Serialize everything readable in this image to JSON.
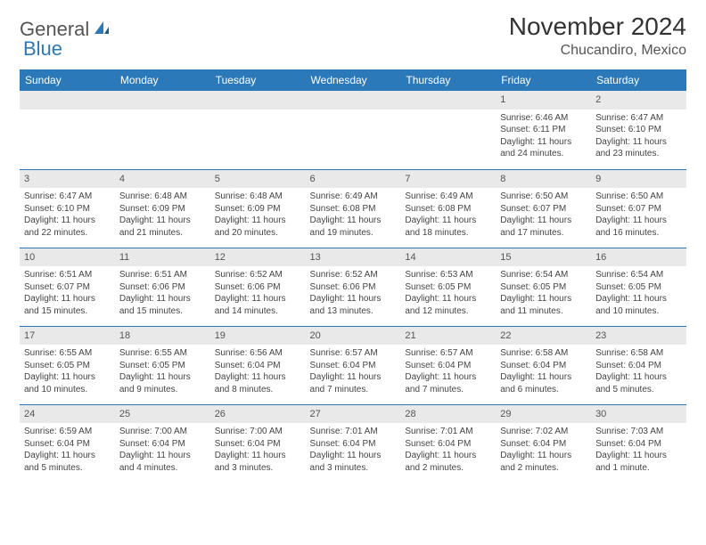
{
  "brand": {
    "part1": "General",
    "part2": "Blue"
  },
  "title": "November 2024",
  "subtitle": "Chucandiro, Mexico",
  "colors": {
    "header_bg": "#2b79b9",
    "header_fg": "#ffffff",
    "daynum_bg": "#e9e9e9",
    "cell_border": "#2b79b9",
    "text": "#444444"
  },
  "typography": {
    "title_fontsize": 28,
    "subtitle_fontsize": 16,
    "header_fontsize": 12,
    "cell_fontsize": 10
  },
  "day_headers": [
    "Sunday",
    "Monday",
    "Tuesday",
    "Wednesday",
    "Thursday",
    "Friday",
    "Saturday"
  ],
  "weeks": [
    [
      null,
      null,
      null,
      null,
      null,
      {
        "n": "1",
        "sunrise": "Sunrise: 6:46 AM",
        "sunset": "Sunset: 6:11 PM",
        "daylight": "Daylight: 11 hours and 24 minutes."
      },
      {
        "n": "2",
        "sunrise": "Sunrise: 6:47 AM",
        "sunset": "Sunset: 6:10 PM",
        "daylight": "Daylight: 11 hours and 23 minutes."
      }
    ],
    [
      {
        "n": "3",
        "sunrise": "Sunrise: 6:47 AM",
        "sunset": "Sunset: 6:10 PM",
        "daylight": "Daylight: 11 hours and 22 minutes."
      },
      {
        "n": "4",
        "sunrise": "Sunrise: 6:48 AM",
        "sunset": "Sunset: 6:09 PM",
        "daylight": "Daylight: 11 hours and 21 minutes."
      },
      {
        "n": "5",
        "sunrise": "Sunrise: 6:48 AM",
        "sunset": "Sunset: 6:09 PM",
        "daylight": "Daylight: 11 hours and 20 minutes."
      },
      {
        "n": "6",
        "sunrise": "Sunrise: 6:49 AM",
        "sunset": "Sunset: 6:08 PM",
        "daylight": "Daylight: 11 hours and 19 minutes."
      },
      {
        "n": "7",
        "sunrise": "Sunrise: 6:49 AM",
        "sunset": "Sunset: 6:08 PM",
        "daylight": "Daylight: 11 hours and 18 minutes."
      },
      {
        "n": "8",
        "sunrise": "Sunrise: 6:50 AM",
        "sunset": "Sunset: 6:07 PM",
        "daylight": "Daylight: 11 hours and 17 minutes."
      },
      {
        "n": "9",
        "sunrise": "Sunrise: 6:50 AM",
        "sunset": "Sunset: 6:07 PM",
        "daylight": "Daylight: 11 hours and 16 minutes."
      }
    ],
    [
      {
        "n": "10",
        "sunrise": "Sunrise: 6:51 AM",
        "sunset": "Sunset: 6:07 PM",
        "daylight": "Daylight: 11 hours and 15 minutes."
      },
      {
        "n": "11",
        "sunrise": "Sunrise: 6:51 AM",
        "sunset": "Sunset: 6:06 PM",
        "daylight": "Daylight: 11 hours and 15 minutes."
      },
      {
        "n": "12",
        "sunrise": "Sunrise: 6:52 AM",
        "sunset": "Sunset: 6:06 PM",
        "daylight": "Daylight: 11 hours and 14 minutes."
      },
      {
        "n": "13",
        "sunrise": "Sunrise: 6:52 AM",
        "sunset": "Sunset: 6:06 PM",
        "daylight": "Daylight: 11 hours and 13 minutes."
      },
      {
        "n": "14",
        "sunrise": "Sunrise: 6:53 AM",
        "sunset": "Sunset: 6:05 PM",
        "daylight": "Daylight: 11 hours and 12 minutes."
      },
      {
        "n": "15",
        "sunrise": "Sunrise: 6:54 AM",
        "sunset": "Sunset: 6:05 PM",
        "daylight": "Daylight: 11 hours and 11 minutes."
      },
      {
        "n": "16",
        "sunrise": "Sunrise: 6:54 AM",
        "sunset": "Sunset: 6:05 PM",
        "daylight": "Daylight: 11 hours and 10 minutes."
      }
    ],
    [
      {
        "n": "17",
        "sunrise": "Sunrise: 6:55 AM",
        "sunset": "Sunset: 6:05 PM",
        "daylight": "Daylight: 11 hours and 10 minutes."
      },
      {
        "n": "18",
        "sunrise": "Sunrise: 6:55 AM",
        "sunset": "Sunset: 6:05 PM",
        "daylight": "Daylight: 11 hours and 9 minutes."
      },
      {
        "n": "19",
        "sunrise": "Sunrise: 6:56 AM",
        "sunset": "Sunset: 6:04 PM",
        "daylight": "Daylight: 11 hours and 8 minutes."
      },
      {
        "n": "20",
        "sunrise": "Sunrise: 6:57 AM",
        "sunset": "Sunset: 6:04 PM",
        "daylight": "Daylight: 11 hours and 7 minutes."
      },
      {
        "n": "21",
        "sunrise": "Sunrise: 6:57 AM",
        "sunset": "Sunset: 6:04 PM",
        "daylight": "Daylight: 11 hours and 7 minutes."
      },
      {
        "n": "22",
        "sunrise": "Sunrise: 6:58 AM",
        "sunset": "Sunset: 6:04 PM",
        "daylight": "Daylight: 11 hours and 6 minutes."
      },
      {
        "n": "23",
        "sunrise": "Sunrise: 6:58 AM",
        "sunset": "Sunset: 6:04 PM",
        "daylight": "Daylight: 11 hours and 5 minutes."
      }
    ],
    [
      {
        "n": "24",
        "sunrise": "Sunrise: 6:59 AM",
        "sunset": "Sunset: 6:04 PM",
        "daylight": "Daylight: 11 hours and 5 minutes."
      },
      {
        "n": "25",
        "sunrise": "Sunrise: 7:00 AM",
        "sunset": "Sunset: 6:04 PM",
        "daylight": "Daylight: 11 hours and 4 minutes."
      },
      {
        "n": "26",
        "sunrise": "Sunrise: 7:00 AM",
        "sunset": "Sunset: 6:04 PM",
        "daylight": "Daylight: 11 hours and 3 minutes."
      },
      {
        "n": "27",
        "sunrise": "Sunrise: 7:01 AM",
        "sunset": "Sunset: 6:04 PM",
        "daylight": "Daylight: 11 hours and 3 minutes."
      },
      {
        "n": "28",
        "sunrise": "Sunrise: 7:01 AM",
        "sunset": "Sunset: 6:04 PM",
        "daylight": "Daylight: 11 hours and 2 minutes."
      },
      {
        "n": "29",
        "sunrise": "Sunrise: 7:02 AM",
        "sunset": "Sunset: 6:04 PM",
        "daylight": "Daylight: 11 hours and 2 minutes."
      },
      {
        "n": "30",
        "sunrise": "Sunrise: 7:03 AM",
        "sunset": "Sunset: 6:04 PM",
        "daylight": "Daylight: 11 hours and 1 minute."
      }
    ]
  ]
}
